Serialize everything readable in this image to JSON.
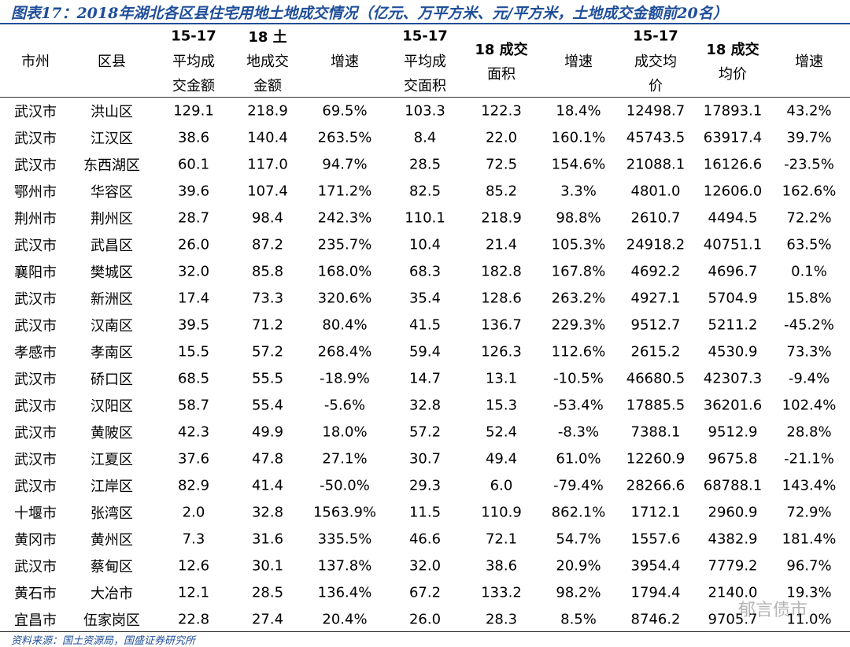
{
  "title": "图表17：2018年湖北各区县住宅用地土地成交情况（亿元、万平方米、元/平方米，土地成交金额前20名）",
  "table": {
    "header": [
      [
        "市州"
      ],
      [
        "区县"
      ],
      [
        "15-17",
        "平均成",
        "交金额"
      ],
      [
        "18 土",
        "地成交",
        "金额"
      ],
      [
        "增速"
      ],
      [
        "15-17",
        "平均成",
        "交面积"
      ],
      [
        "18 成交",
        "面积"
      ],
      [
        "增速"
      ],
      [
        "15-17",
        "成交均",
        "价"
      ],
      [
        "18 成交",
        "均价"
      ],
      [
        "增速"
      ]
    ],
    "rows": [
      [
        "武汉市",
        "洪山区",
        "129.1",
        "218.9",
        "69.5%",
        "103.3",
        "122.3",
        "18.4%",
        "12498.7",
        "17893.1",
        "43.2%"
      ],
      [
        "武汉市",
        "江汉区",
        "38.6",
        "140.4",
        "263.5%",
        "8.4",
        "22.0",
        "160.1%",
        "45743.5",
        "63917.4",
        "39.7%"
      ],
      [
        "武汉市",
        "东西湖区",
        "60.1",
        "117.0",
        "94.7%",
        "28.5",
        "72.5",
        "154.6%",
        "21088.1",
        "16126.6",
        "-23.5%"
      ],
      [
        "鄂州市",
        "华容区",
        "39.6",
        "107.4",
        "171.2%",
        "82.5",
        "85.2",
        "3.3%",
        "4801.0",
        "12606.0",
        "162.6%"
      ],
      [
        "荆州市",
        "荆州区",
        "28.7",
        "98.4",
        "242.3%",
        "110.1",
        "218.9",
        "98.8%",
        "2610.7",
        "4494.5",
        "72.2%"
      ],
      [
        "武汉市",
        "武昌区",
        "26.0",
        "87.2",
        "235.7%",
        "10.4",
        "21.4",
        "105.3%",
        "24918.2",
        "40751.1",
        "63.5%"
      ],
      [
        "襄阳市",
        "樊城区",
        "32.0",
        "85.8",
        "168.0%",
        "68.3",
        "182.8",
        "167.8%",
        "4692.2",
        "4696.7",
        "0.1%"
      ],
      [
        "武汉市",
        "新洲区",
        "17.4",
        "73.3",
        "320.6%",
        "35.4",
        "128.6",
        "263.2%",
        "4927.1",
        "5704.9",
        "15.8%"
      ],
      [
        "武汉市",
        "汉南区",
        "39.5",
        "71.2",
        "80.4%",
        "41.5",
        "136.7",
        "229.3%",
        "9512.7",
        "5211.2",
        "-45.2%"
      ],
      [
        "孝感市",
        "孝南区",
        "15.5",
        "57.2",
        "268.4%",
        "59.4",
        "126.3",
        "112.6%",
        "2615.2",
        "4530.9",
        "73.3%"
      ],
      [
        "武汉市",
        "硚口区",
        "68.5",
        "55.5",
        "-18.9%",
        "14.7",
        "13.1",
        "-10.5%",
        "46680.5",
        "42307.3",
        "-9.4%"
      ],
      [
        "武汉市",
        "汉阳区",
        "58.7",
        "55.4",
        "-5.6%",
        "32.8",
        "15.3",
        "-53.4%",
        "17885.5",
        "36201.6",
        "102.4%"
      ],
      [
        "武汉市",
        "黄陂区",
        "42.3",
        "49.9",
        "18.0%",
        "57.2",
        "52.4",
        "-8.3%",
        "7388.1",
        "9512.9",
        "28.8%"
      ],
      [
        "武汉市",
        "江夏区",
        "37.6",
        "47.8",
        "27.1%",
        "30.7",
        "49.4",
        "61.0%",
        "12260.9",
        "9675.8",
        "-21.1%"
      ],
      [
        "武汉市",
        "江岸区",
        "82.9",
        "41.4",
        "-50.0%",
        "29.3",
        "6.0",
        "-79.4%",
        "28266.6",
        "68788.1",
        "143.4%"
      ],
      [
        "十堰市",
        "张湾区",
        "2.0",
        "32.8",
        "1563.9%",
        "11.5",
        "110.9",
        "862.1%",
        "1712.1",
        "2960.9",
        "72.9%"
      ],
      [
        "黄冈市",
        "黄州区",
        "7.3",
        "31.6",
        "335.5%",
        "46.6",
        "72.1",
        "54.7%",
        "1557.6",
        "4382.9",
        "181.4%"
      ],
      [
        "武汉市",
        "蔡甸区",
        "12.6",
        "30.1",
        "137.8%",
        "32.0",
        "38.6",
        "20.9%",
        "3954.4",
        "7779.2",
        "96.7%"
      ],
      [
        "黄石市",
        "大冶市",
        "12.1",
        "28.5",
        "136.4%",
        "67.2",
        "133.2",
        "98.2%",
        "1794.4",
        "2140.0",
        "19.3%"
      ],
      [
        "宜昌市",
        "伍家岗区",
        "22.8",
        "27.4",
        "20.4%",
        "26.0",
        "28.3",
        "8.5%",
        "8746.2",
        "9705.7",
        "11.0%"
      ]
    ]
  },
  "watermark": "郁言债市",
  "source": "资料来源：国土资源局，国盛证券研究所"
}
